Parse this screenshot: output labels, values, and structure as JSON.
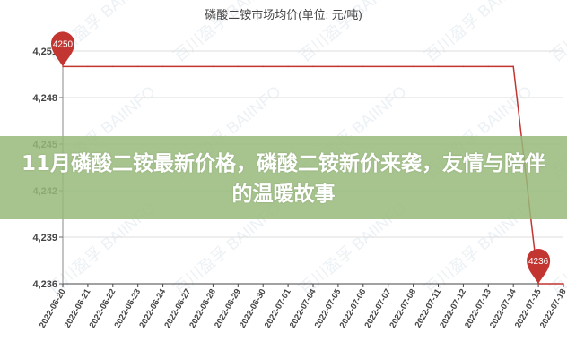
{
  "chart_data": {
    "type": "line",
    "title": "磷酸二铵市场均价(单位:  元/吨)",
    "xlabel": "",
    "ylabel": "",
    "categories": [
      "2022-06-20",
      "2022-06-21",
      "2022-06-22",
      "2022-06-23",
      "2022-06-24",
      "2022-06-27",
      "2022-06-28",
      "2022-06-29",
      "2022-06-30",
      "2022-07-01",
      "2022-07-04",
      "2022-07-05",
      "2022-07-06",
      "2022-07-07",
      "2022-07-08",
      "2022-07-11",
      "2022-07-12",
      "2022-07-13",
      "2022-07-14",
      "2022-07-15",
      "2022-07-18"
    ],
    "values": [
      4250,
      4250,
      4250,
      4250,
      4250,
      4250,
      4250,
      4250,
      4250,
      4250,
      4250,
      4250,
      4250,
      4250,
      4250,
      4250,
      4250,
      4250,
      4250,
      4236,
      4236
    ],
    "ylim": [
      4236,
      4251
    ],
    "yticks": [
      "4,236",
      "4,239",
      "4,242",
      "4,245",
      "4,248",
      "4,251"
    ],
    "ytick_values": [
      4236,
      4239,
      4242,
      4245,
      4248,
      4251
    ],
    "markers": [
      {
        "label": "4250",
        "index": 0
      },
      {
        "label": "4236",
        "index": 19
      }
    ],
    "grid": true,
    "line_color": "#c23531",
    "watermark": "百川盈孚 BAIINFO"
  },
  "banner": {
    "headline": "11月磷酸二铵最新价格，磷酸二铵新价来袭，友情与陪伴的温暖故事",
    "color": "#98ba7a"
  }
}
